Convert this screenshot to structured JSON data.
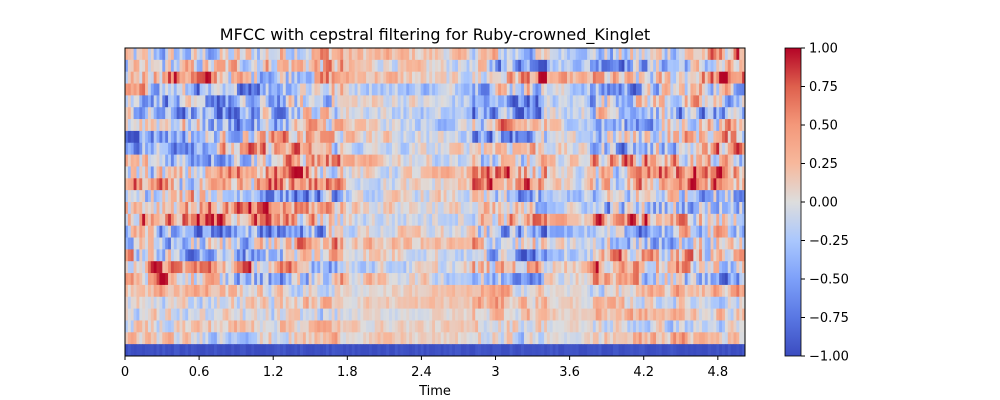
{
  "chart_data": {
    "type": "heatmap",
    "title": "MFCC with cepstral filtering for Ruby-crowned_Kinglet",
    "xlabel": "Time",
    "ylabel": "",
    "xlim": [
      0,
      5.02
    ],
    "x_ticks": [
      "0",
      "0.6",
      "1.2",
      "1.8",
      "2.4",
      "3",
      "3.6",
      "4.2",
      "4.8"
    ],
    "x_tick_values": [
      0,
      0.6,
      1.2,
      1.8,
      2.4,
      3.0,
      3.6,
      4.2,
      4.8
    ],
    "rows": 26,
    "columns": 216,
    "colormap": "coolwarm",
    "value_range": [
      -1.0,
      1.0
    ],
    "first_row_value": -0.97,
    "colorbar": {
      "ticks": [
        "1.00",
        "0.75",
        "0.50",
        "0.25",
        "0.00",
        "−0.25",
        "−0.50",
        "−0.75",
        "−1.00"
      ],
      "tick_values": [
        1.0,
        0.75,
        0.5,
        0.25,
        0.0,
        -0.25,
        -0.5,
        -0.75,
        -1.0
      ]
    },
    "colors": {
      "low": "#3b4cc0",
      "mid": "#dddddd",
      "high": "#b40426"
    }
  }
}
